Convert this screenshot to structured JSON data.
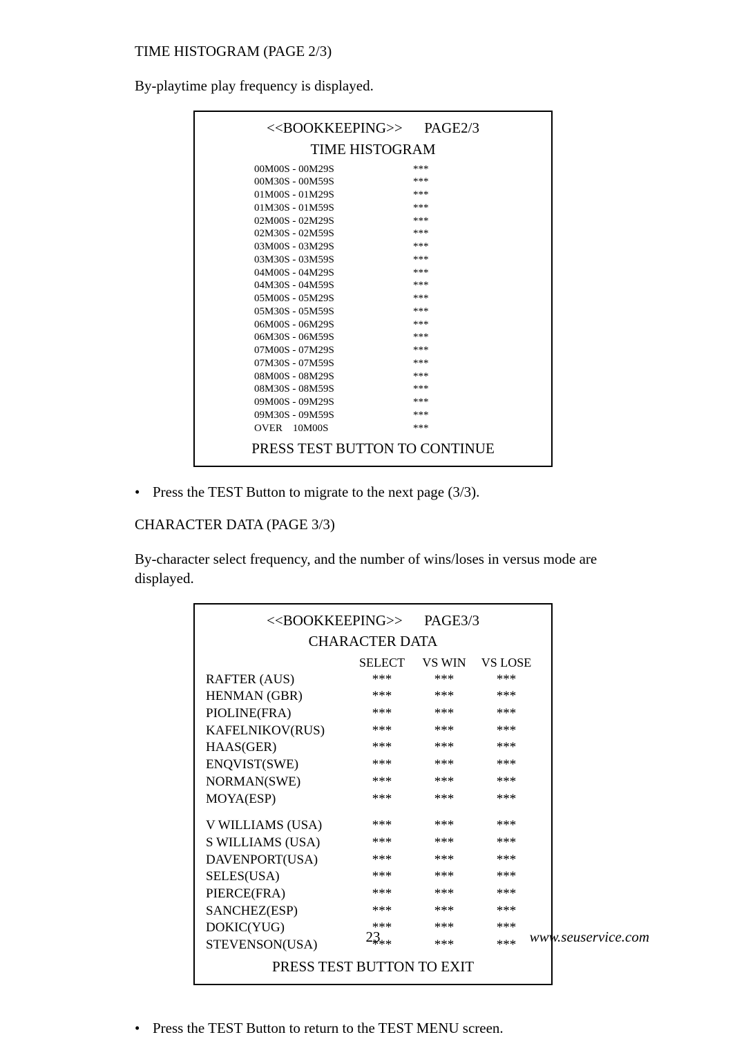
{
  "section1": {
    "heading": "TIME HISTOGRAM (PAGE 2/3)",
    "intro": "By-playtime play frequency is displayed."
  },
  "histogram_screen": {
    "title_left": "<<BOOKKEEPING>>",
    "title_right": "PAGE2/3",
    "subtitle": "TIME HISTOGRAM",
    "value_glyph": "***",
    "rows": [
      "00M00S - 00M29S",
      "00M30S - 00M59S",
      "01M00S - 01M29S",
      "01M30S - 01M59S",
      "02M00S - 02M29S",
      "02M30S - 02M59S",
      "03M00S - 03M29S",
      "03M30S - 03M59S",
      "04M00S - 04M29S",
      "04M30S - 04M59S",
      "05M00S - 05M29S",
      "05M30S - 05M59S",
      "06M00S - 06M29S",
      "06M30S - 06M59S",
      "07M00S - 07M29S",
      "07M30S - 07M59S",
      "08M00S - 08M29S",
      "08M30S - 08M59S",
      "09M00S - 09M29S",
      "09M30S - 09M59S",
      "OVER    10M00S"
    ],
    "continue": "PRESS TEST BUTTON TO CONTINUE"
  },
  "bullet1": "Press the TEST Button to migrate to the next page (3/3).",
  "section2": {
    "heading": "CHARACTER DATA (PAGE 3/3)",
    "intro": "By-character select frequency, and the number of wins/loses in versus mode are dis­played."
  },
  "chardata_screen": {
    "title_left": "<<BOOKKEEPING>>",
    "title_right": "PAGE3/3",
    "subtitle": "CHARACTER DATA",
    "columns": [
      "SELECT",
      "VS WIN",
      "VS LOSE"
    ],
    "value_glyph": "***",
    "group1": [
      "RAFTER (AUS)",
      "HENMAN (GBR)",
      "PIOLINE(FRA)",
      "KAFELNIKOV(RUS)",
      "HAAS(GER)",
      "ENQVIST(SWE)",
      "NORMAN(SWE)",
      "MOYA(ESP)"
    ],
    "group2": [
      "V WILLIAMS (USA)",
      "S WILLIAMS (USA)",
      "DAVENPORT(USA)",
      "SELES(USA)",
      "PIERCE(FRA)",
      "SANCHEZ(ESP)",
      "DOKIC(YUG)",
      "STEVENSON(USA)"
    ],
    "exit": "PRESS TEST BUTTON TO EXIT"
  },
  "bullet2": "Press the TEST Button to return to the TEST MENU screen.",
  "footer": {
    "page_number": "23",
    "url": "www.seuservice.com"
  },
  "colors": {
    "text": "#000000",
    "background": "#ffffff",
    "border": "#000000"
  }
}
